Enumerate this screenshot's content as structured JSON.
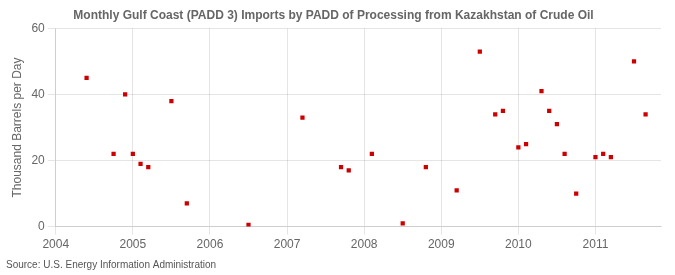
{
  "chart_data": {
    "type": "scatter",
    "title": "Monthly Gulf Coast (PADD 3) Imports by PADD of Processing from Kazakhstan of Crude Oil",
    "ylabel": "Thousand Barrels per Day",
    "annotation": "Source: U.S. Energy Information Administration",
    "x": [
      2004.4,
      2004.75,
      2004.9,
      2005.0,
      2005.1,
      2005.2,
      2005.5,
      2005.7,
      2006.5,
      2007.2,
      2007.7,
      2007.8,
      2008.1,
      2008.5,
      2008.8,
      2009.2,
      2009.5,
      2009.7,
      2009.8,
      2010.0,
      2010.1,
      2010.3,
      2010.4,
      2010.5,
      2010.6,
      2010.75,
      2011.0,
      2011.1,
      2011.2,
      2011.5,
      2011.65
    ],
    "values": [
      45,
      22,
      40,
      22,
      19,
      18,
      38,
      7,
      0.5,
      33,
      18,
      17,
      22,
      1,
      18,
      11,
      53,
      34,
      35,
      24,
      25,
      41,
      35,
      31,
      22,
      10,
      21,
      22,
      21,
      50,
      34
    ],
    "color": "#cc0000",
    "marker": "square",
    "xlim": [
      2004.0,
      2011.85
    ],
    "xticks": [
      2004,
      2005,
      2006,
      2007,
      2008,
      2009,
      2010,
      2011
    ],
    "ylim": [
      0,
      60
    ],
    "yticks": [
      0,
      20,
      40,
      60
    ],
    "grid": true
  }
}
